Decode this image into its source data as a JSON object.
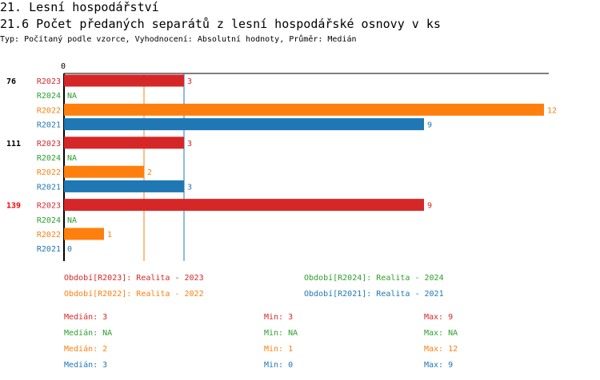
{
  "header": {
    "section": "21. Lesní hospodářství",
    "title": "21.6 Počet předaných separátů z lesní hospodářské osnovy v ks",
    "subtitle": "Typ: Počítaný podle vzorce, Vyhodnocení: Absolutní hodnoty, Průměr: Medián"
  },
  "colors": {
    "R2023": "#d62728",
    "R2024": "#2ca02c",
    "R2022": "#ff7f0e",
    "R2021": "#1f77b4",
    "highlight": "#ff0000"
  },
  "chart_data": {
    "type": "bar",
    "orientation": "horizontal",
    "x_axis_zero_label": "0",
    "xlim": [
      0,
      12
    ],
    "series_order": [
      "R2023",
      "R2024",
      "R2022",
      "R2021"
    ],
    "groups": [
      {
        "label": "76",
        "highlight": false,
        "bars": [
          {
            "series": "R2023",
            "value": 3,
            "label": "3"
          },
          {
            "series": "R2024",
            "value": null,
            "label": "NA"
          },
          {
            "series": "R2022",
            "value": 12,
            "label": "12"
          },
          {
            "series": "R2021",
            "value": 9,
            "label": "9"
          }
        ]
      },
      {
        "label": "111",
        "highlight": false,
        "bars": [
          {
            "series": "R2023",
            "value": 3,
            "label": "3"
          },
          {
            "series": "R2024",
            "value": null,
            "label": "NA"
          },
          {
            "series": "R2022",
            "value": 2,
            "label": "2"
          },
          {
            "series": "R2021",
            "value": 3,
            "label": "3"
          }
        ]
      },
      {
        "label": "139",
        "highlight": true,
        "bars": [
          {
            "series": "R2023",
            "value": 9,
            "label": "9"
          },
          {
            "series": "R2024",
            "value": null,
            "label": "NA"
          },
          {
            "series": "R2022",
            "value": 1,
            "label": "1"
          },
          {
            "series": "R2021",
            "value": 0,
            "label": "0"
          }
        ]
      }
    ],
    "median_lines": [
      {
        "series": "R2022",
        "value": 2
      },
      {
        "series": "R2021",
        "value": 3
      }
    ]
  },
  "legend": [
    {
      "series": "R2023",
      "text": "Období[R2023]: Realita - 2023"
    },
    {
      "series": "R2024",
      "text": "Období[R2024]: Realita - 2024"
    },
    {
      "series": "R2022",
      "text": "Období[R2022]: Realita - 2022"
    },
    {
      "series": "R2021",
      "text": "Období[R2021]: Realita - 2021"
    }
  ],
  "stats": [
    {
      "series": "R2023",
      "median": "Medián: 3",
      "min": "Min: 3",
      "max": "Max: 9"
    },
    {
      "series": "R2024",
      "median": "Medián: NA",
      "min": "Min: NA",
      "max": "Max: NA"
    },
    {
      "series": "R2022",
      "median": "Medián: 2",
      "min": "Min: 1",
      "max": "Max: 12"
    },
    {
      "series": "R2021",
      "median": "Medián: 3",
      "min": "Min: 0",
      "max": "Max: 9"
    }
  ]
}
